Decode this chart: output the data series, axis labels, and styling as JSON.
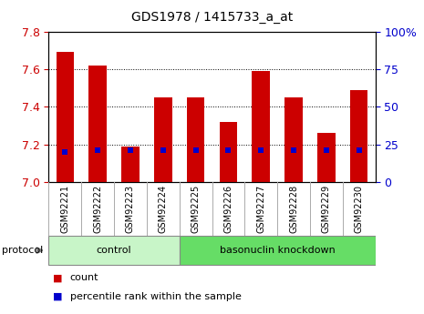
{
  "title": "GDS1978 / 1415733_a_at",
  "samples": [
    "GSM92221",
    "GSM92222",
    "GSM92223",
    "GSM92224",
    "GSM92225",
    "GSM92226",
    "GSM92227",
    "GSM92228",
    "GSM92229",
    "GSM92230"
  ],
  "count_values": [
    7.69,
    7.62,
    7.19,
    7.45,
    7.45,
    7.32,
    7.59,
    7.45,
    7.26,
    7.49
  ],
  "percentile_values": [
    20,
    21,
    21,
    21,
    21,
    21,
    21,
    21,
    21,
    21
  ],
  "groups": [
    {
      "label": "control",
      "start": 0,
      "end": 4,
      "color": "#c8f5c8"
    },
    {
      "label": "basonuclin knockdown",
      "start": 4,
      "end": 10,
      "color": "#66dd66"
    }
  ],
  "ylim_left": [
    7.0,
    7.8
  ],
  "ylim_right": [
    0,
    100
  ],
  "yticks_left": [
    7.0,
    7.2,
    7.4,
    7.6,
    7.8
  ],
  "yticks_right": [
    0,
    25,
    50,
    75,
    100
  ],
  "bar_color": "#cc0000",
  "percentile_color": "#0000cc",
  "bar_width": 0.55,
  "left_tick_color": "#cc0000",
  "right_tick_color": "#0000cc",
  "legend_count_label": "count",
  "legend_percentile_label": "percentile rank within the sample",
  "protocol_label": "protocol",
  "background_color": "#ffffff",
  "plot_bg_color": "#ffffff",
  "grid_color": "#000000",
  "xlabel_bg": "#cccccc"
}
